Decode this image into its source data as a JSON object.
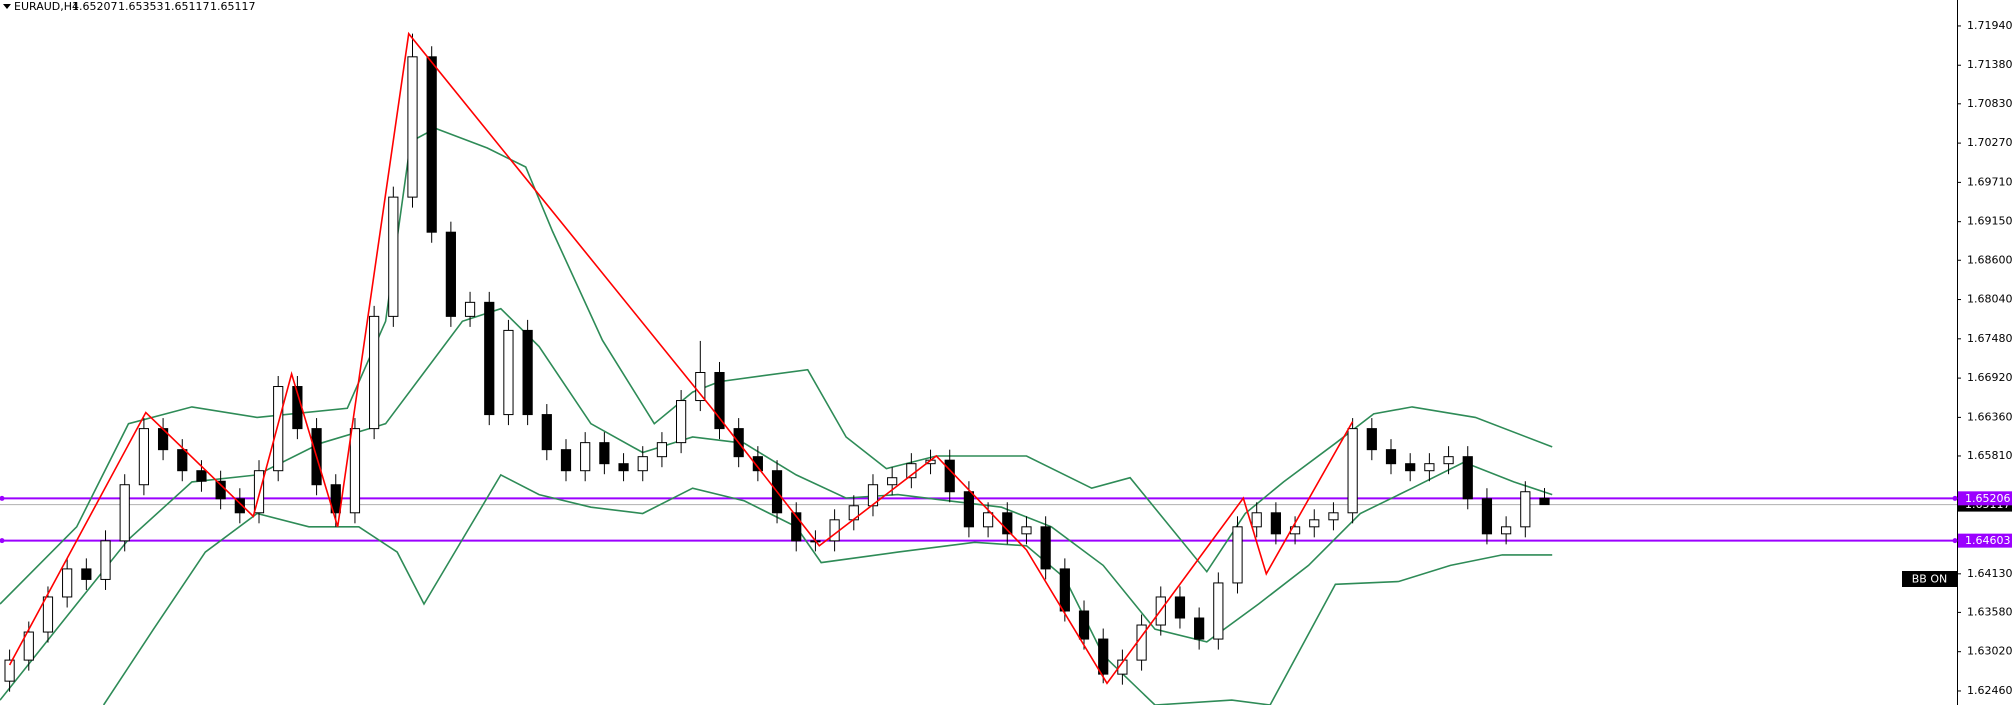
{
  "chart_data": {
    "type": "candlestick",
    "symbol": "EURAUD,H4",
    "indicator_label": "BB ON",
    "xlim": [
      -0.5,
      101.5
    ],
    "ylim": [
      1.6226,
      1.7231
    ],
    "yticks": [
      {
        "value": 1.7194,
        "label": "1.71940"
      },
      {
        "value": 1.7138,
        "label": "1.71380"
      },
      {
        "value": 1.7083,
        "label": "1.70830"
      },
      {
        "value": 1.7027,
        "label": "1.70270"
      },
      {
        "value": 1.6971,
        "label": "1.69710"
      },
      {
        "value": 1.6915,
        "label": "1.69150"
      },
      {
        "value": 1.686,
        "label": "1.68600"
      },
      {
        "value": 1.6804,
        "label": "1.68040"
      },
      {
        "value": 1.6748,
        "label": "1.67480"
      },
      {
        "value": 1.6692,
        "label": "1.66920"
      },
      {
        "value": 1.6636,
        "label": "1.66360"
      },
      {
        "value": 1.6581,
        "label": "1.65810"
      },
      {
        "value": 1.6413,
        "label": "1.64130"
      },
      {
        "value": 1.6358,
        "label": "1.63580"
      },
      {
        "value": 1.6302,
        "label": "1.63020"
      },
      {
        "value": 1.6246,
        "label": "1.62460"
      }
    ],
    "bull_color": "#ffffff",
    "bear_color": "#000000",
    "wick_color": "#000000",
    "open": [
      1.626,
      1.629,
      1.633,
      1.638,
      1.642,
      1.6405,
      1.646,
      1.654,
      1.662,
      1.659,
      1.656,
      1.6545,
      1.652,
      1.65,
      1.656,
      1.668,
      1.662,
      1.654,
      1.65,
      1.662,
      1.678,
      1.695,
      1.715,
      1.69,
      1.678,
      1.68,
      1.664,
      1.676,
      1.664,
      1.659,
      1.656,
      1.66,
      1.657,
      1.656,
      1.658,
      1.66,
      1.666,
      1.67,
      1.662,
      1.658,
      1.656,
      1.65,
      1.646,
      1.646,
      1.649,
      1.651,
      1.654,
      1.655,
      1.657,
      1.6575,
      1.653,
      1.648,
      1.65,
      1.647,
      1.648,
      1.642,
      1.636,
      1.632,
      1.627,
      1.629,
      1.634,
      1.638,
      1.635,
      1.632,
      1.64,
      1.648,
      1.65,
      1.647,
      1.648,
      1.649,
      1.65,
      1.662,
      1.659,
      1.657,
      1.656,
      1.657,
      1.658,
      1.652,
      1.647,
      1.648,
      1.65207
    ],
    "high": [
      1.6305,
      1.6345,
      1.6395,
      1.6435,
      1.6435,
      1.6475,
      1.6555,
      1.6635,
      1.6635,
      1.6605,
      1.6575,
      1.656,
      1.6535,
      1.6575,
      1.6695,
      1.6695,
      1.6635,
      1.6555,
      1.6635,
      1.6795,
      1.6965,
      1.7183,
      1.7165,
      1.6915,
      1.6815,
      1.6815,
      1.6775,
      1.6775,
      1.6655,
      1.6605,
      1.6615,
      1.6615,
      1.6585,
      1.6595,
      1.6615,
      1.6675,
      1.6745,
      1.6715,
      1.6635,
      1.6595,
      1.6575,
      1.6515,
      1.6475,
      1.6505,
      1.6525,
      1.6555,
      1.6565,
      1.6585,
      1.659,
      1.659,
      1.6545,
      1.6515,
      1.6515,
      1.6495,
      1.6495,
      1.6435,
      1.6375,
      1.6335,
      1.6305,
      1.6355,
      1.6395,
      1.6395,
      1.6365,
      1.6415,
      1.6495,
      1.6515,
      1.6515,
      1.6495,
      1.6505,
      1.6515,
      1.6635,
      1.6635,
      1.6605,
      1.6585,
      1.6585,
      1.6595,
      1.6595,
      1.6535,
      1.6495,
      1.6545,
      1.65353
    ],
    "low": [
      1.6245,
      1.6275,
      1.6315,
      1.6365,
      1.639,
      1.639,
      1.6445,
      1.6525,
      1.6575,
      1.6545,
      1.653,
      1.6505,
      1.6485,
      1.6485,
      1.6545,
      1.6605,
      1.6525,
      1.648,
      1.6485,
      1.6605,
      1.6765,
      1.6935,
      1.6885,
      1.6765,
      1.6765,
      1.6625,
      1.6625,
      1.6625,
      1.6575,
      1.6545,
      1.6545,
      1.6555,
      1.6545,
      1.6545,
      1.6565,
      1.6585,
      1.6645,
      1.6605,
      1.6565,
      1.6545,
      1.6485,
      1.6445,
      1.6445,
      1.6445,
      1.6475,
      1.6495,
      1.6525,
      1.6535,
      1.6555,
      1.6515,
      1.6465,
      1.6465,
      1.6455,
      1.6455,
      1.6405,
      1.6345,
      1.6305,
      1.6257,
      1.6255,
      1.6275,
      1.6325,
      1.6335,
      1.6305,
      1.6305,
      1.6385,
      1.6465,
      1.6455,
      1.6455,
      1.6465,
      1.6475,
      1.6485,
      1.6575,
      1.6555,
      1.6545,
      1.6545,
      1.6555,
      1.6505,
      1.6455,
      1.6455,
      1.6465,
      1.65117
    ],
    "close": [
      1.629,
      1.633,
      1.638,
      1.642,
      1.6405,
      1.646,
      1.654,
      1.662,
      1.659,
      1.656,
      1.6545,
      1.652,
      1.65,
      1.656,
      1.668,
      1.662,
      1.654,
      1.65,
      1.662,
      1.678,
      1.695,
      1.715,
      1.69,
      1.678,
      1.68,
      1.664,
      1.676,
      1.664,
      1.659,
      1.656,
      1.66,
      1.657,
      1.656,
      1.658,
      1.66,
      1.666,
      1.67,
      1.662,
      1.658,
      1.656,
      1.65,
      1.646,
      1.646,
      1.649,
      1.651,
      1.654,
      1.655,
      1.657,
      1.6575,
      1.653,
      1.648,
      1.65,
      1.647,
      1.648,
      1.642,
      1.636,
      1.632,
      1.627,
      1.629,
      1.634,
      1.638,
      1.635,
      1.632,
      1.64,
      1.648,
      1.65,
      1.647,
      1.648,
      1.649,
      1.65,
      1.662,
      1.659,
      1.657,
      1.656,
      1.657,
      1.658,
      1.652,
      1.647,
      1.648,
      1.653,
      1.65117
    ],
    "bands": [
      {
        "color": "#2e8b57",
        "x": [
          -0.5,
          3.5,
          6.2,
          9.5,
          12.9,
          17.6,
          19.6,
          20.9,
          22.2,
          24.9,
          26.9,
          28.3,
          30.9,
          33.6,
          35.6,
          37.0,
          41.6,
          43.6,
          45.7,
          48.3,
          53.0,
          56.4,
          58.4,
          62.4,
          64.4,
          66.4,
          69.1,
          71.1,
          73.1,
          76.4,
          80.4
        ],
        "values": [
          1.637,
          1.648,
          1.6627,
          1.6651,
          1.6636,
          1.6649,
          1.6773,
          1.7029,
          1.7048,
          1.702,
          1.6993,
          1.6901,
          1.6746,
          1.6627,
          1.6672,
          1.6687,
          1.6704,
          1.6608,
          1.6563,
          1.6581,
          1.6581,
          1.6535,
          1.655,
          1.6416,
          1.6499,
          1.6544,
          1.6599,
          1.6641,
          1.6651,
          1.6636,
          1.6594
        ]
      },
      {
        "color": "#2e8b57",
        "x": [
          -0.5,
          3.5,
          6.2,
          9.5,
          12.9,
          16.2,
          19.6,
          21.6,
          23.6,
          25.6,
          27.6,
          30.3,
          33.0,
          35.6,
          38.3,
          41.0,
          43.6,
          46.3,
          49.0,
          51.7,
          54.3,
          57.0,
          59.7,
          62.4,
          65.1,
          67.7,
          70.4,
          73.1,
          75.8,
          78.4,
          80.4
        ],
        "values": [
          1.6233,
          1.637,
          1.6462,
          1.6544,
          1.6554,
          1.6599,
          1.6627,
          1.67,
          1.6773,
          1.6791,
          1.6737,
          1.6627,
          1.6586,
          1.6608,
          1.6599,
          1.6554,
          1.6521,
          1.6526,
          1.6517,
          1.6508,
          1.648,
          1.6425,
          1.6334,
          1.6316,
          1.637,
          1.6425,
          1.6499,
          1.6535,
          1.6572,
          1.6544,
          1.6526
        ]
      },
      {
        "color": "#2e8b57",
        "x": [
          4.9,
          7.5,
          10.2,
          12.9,
          15.6,
          18.2,
          20.2,
          21.6,
          23.6,
          25.6,
          27.6,
          30.3,
          33.0,
          35.6,
          38.3,
          41.0,
          42.3,
          46.3,
          50.3,
          53.0,
          55.0,
          57.0,
          59.7,
          63.7,
          65.7,
          69.1,
          72.4,
          75.1,
          77.8,
          80.4
        ],
        "values": [
          1.6226,
          1.6334,
          1.6444,
          1.6499,
          1.648,
          1.648,
          1.6444,
          1.637,
          1.6462,
          1.6554,
          1.6526,
          1.6508,
          1.6499,
          1.6535,
          1.6517,
          1.648,
          1.6429,
          1.6444,
          1.6458,
          1.6453,
          1.6407,
          1.6297,
          1.6226,
          1.6233,
          1.6226,
          1.6398,
          1.6402,
          1.6425,
          1.644,
          1.644
        ]
      }
    ],
    "zigzag": {
      "color": "#ff0000",
      "x": [
        0,
        7.1,
        12.7,
        14.7,
        17.1,
        20.8,
        36.6,
        42.2,
        48.3,
        53,
        57.2,
        64.3,
        65.5,
        70
      ],
      "values": [
        1.6283,
        1.6643,
        1.6495,
        1.6698,
        1.648,
        1.7183,
        1.6649,
        1.6453,
        1.6581,
        1.6447,
        1.6257,
        1.6521,
        1.6413,
        1.663
      ]
    },
    "hlines": [
      {
        "value": 1.65206,
        "color": "#9b00ff"
      },
      {
        "value": 1.64603,
        "color": "#9b00ff"
      }
    ],
    "price_line_color": "#b0b0b0"
  }
}
